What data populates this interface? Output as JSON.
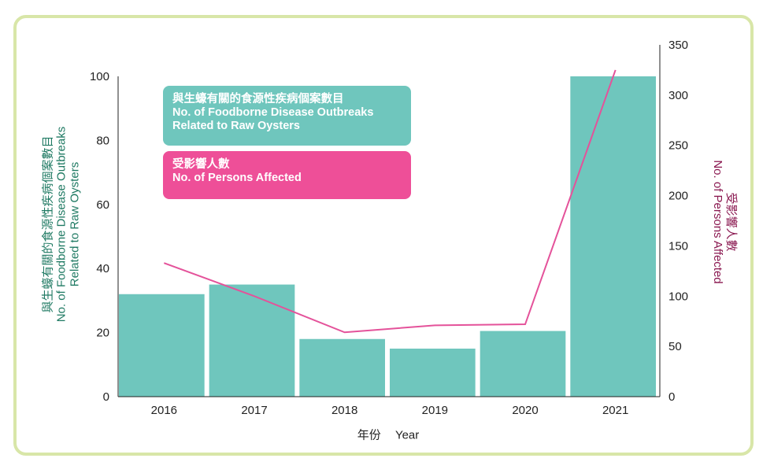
{
  "colors": {
    "bar": "#6fc6bd",
    "line": "#e4529a",
    "legend_line_bg": "#ee4f98",
    "left_title": "#1f7a63",
    "right_title": "#8a1850",
    "frame": "#d8e6a8"
  },
  "legend": {
    "outbreaks": {
      "zh": "與生蠔有關的食源性疾病個案數目",
      "en_line1": "No. of Foodborne Disease Outbreaks",
      "en_line2": "Related to Raw Oysters"
    },
    "persons": {
      "zh": "受影響人數",
      "en": "No. of Persons Affected"
    }
  },
  "left_axis_title": {
    "zh": "與生蠔有關的食源性疾病個案數目",
    "en_line1": "No. of Foodborne Disease Outbreaks",
    "en_line2": "Related to Raw Oysters"
  },
  "right_axis_title": {
    "zh": "受影響人數",
    "en": "No. of Persons Affected"
  },
  "x_axis_title": {
    "zh": "年份",
    "en": "Year"
  },
  "chart_data": {
    "type": "bar",
    "categories": [
      "2016",
      "2017",
      "2018",
      "2019",
      "2020",
      "2021"
    ],
    "series": [
      {
        "name": "No. of Foodborne Disease Outbreaks Related to Raw Oysters",
        "kind": "bar",
        "axis": "left",
        "values": [
          32,
          35,
          18,
          15,
          20.5,
          100
        ]
      },
      {
        "name": "No. of Persons Affected",
        "kind": "line",
        "axis": "right",
        "values": [
          133,
          100,
          64,
          71,
          72,
          325
        ]
      }
    ],
    "ylim_left": [
      0,
      100
    ],
    "yticks_left": [
      0,
      20,
      40,
      60,
      80,
      100
    ],
    "ylim_right": [
      0,
      350
    ],
    "yticks_right": [
      0,
      50,
      100,
      150,
      200,
      250,
      300,
      350
    ],
    "grid": false,
    "legend_position": "top-left"
  }
}
